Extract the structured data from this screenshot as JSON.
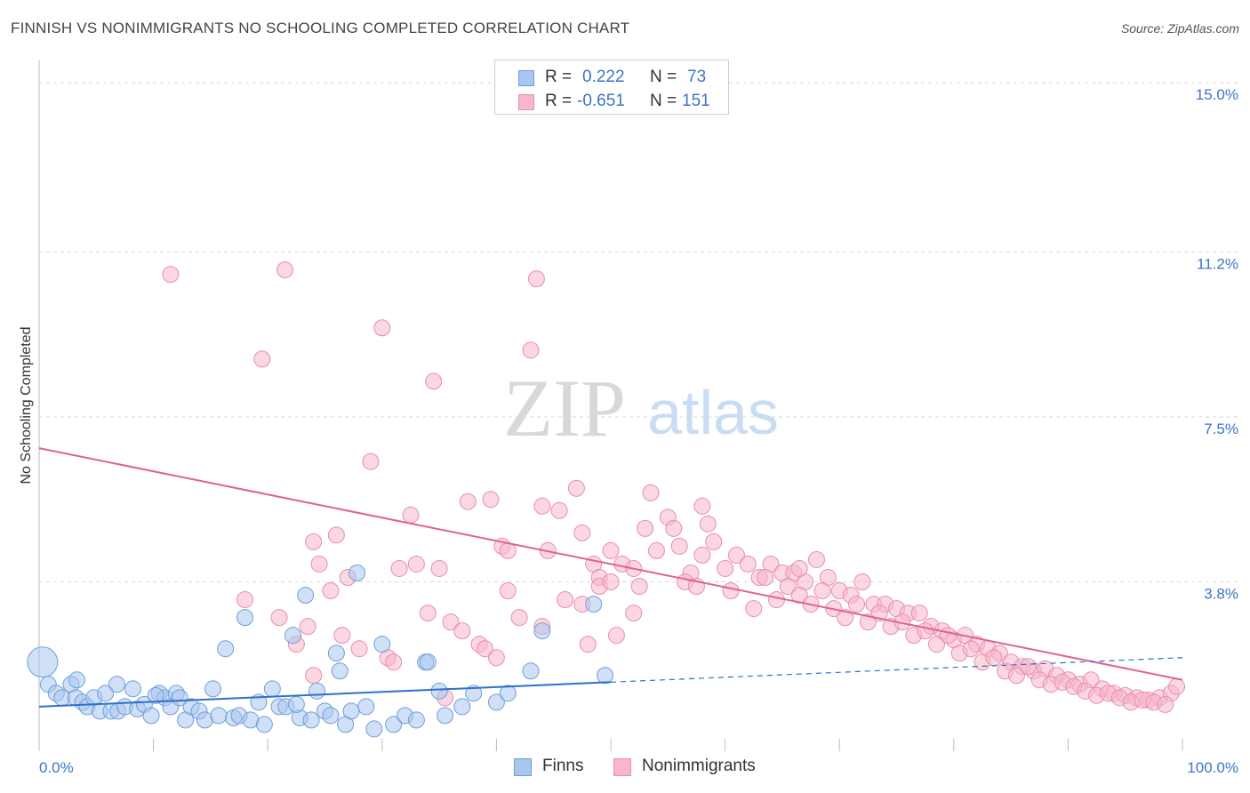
{
  "title": "FINNISH VS NONIMMIGRANTS NO SCHOOLING COMPLETED CORRELATION CHART",
  "source": "Source: ZipAtlas.com",
  "watermark": {
    "zip": "ZIP",
    "atlas": "atlas"
  },
  "legend": {
    "finns": {
      "r_label": "R =",
      "r_value": "0.222",
      "n_label": "N =",
      "n_value": "73"
    },
    "nonimmigrants": {
      "r_label": "R =",
      "r_value": "-0.651",
      "n_label": "N =",
      "n_value": "151"
    }
  },
  "colors": {
    "finns_fill": "#a9c6ee",
    "finns_stroke": "#6f9fdb",
    "finns_line": "#2f6fcf",
    "non_fill": "#f7b6cb",
    "non_stroke": "#e98eaa",
    "non_line": "#e0628e",
    "grid": "#d7d7d7",
    "tick_label": "#3c74c8"
  },
  "chart_data": {
    "type": "scatter",
    "title": "FINNISH VS NONIMMIGRANTS NO SCHOOLING COMPLETED CORRELATION CHART",
    "xlabel": "",
    "ylabel": "No Schooling Completed",
    "xlim": [
      0,
      100
    ],
    "ylim": [
      0,
      15.0
    ],
    "x_tick_labels": [
      "0.0%",
      "100.0%"
    ],
    "y_ticks": [
      3.8,
      7.5,
      11.2,
      15.0
    ],
    "y_tick_labels": [
      "3.8%",
      "7.5%",
      "11.2%",
      "15.0%"
    ],
    "grid": true,
    "legend_position": "bottom-center",
    "series": [
      {
        "name": "Finns",
        "r": 0.222,
        "n": 73,
        "trend": {
          "x": [
            0,
            50
          ],
          "y": [
            1.0,
            1.55
          ]
        },
        "trend_extension": {
          "x": [
            50,
            100
          ],
          "y": [
            1.55,
            2.1
          ]
        },
        "points": [
          [
            0.3,
            2.0
          ],
          [
            0.8,
            1.5
          ],
          [
            1.5,
            1.3
          ],
          [
            2.0,
            1.2
          ],
          [
            2.8,
            1.5
          ],
          [
            3.2,
            1.2
          ],
          [
            3.8,
            1.1
          ],
          [
            4.2,
            1.0
          ],
          [
            4.8,
            1.2
          ],
          [
            5.3,
            0.9
          ],
          [
            5.8,
            1.3
          ],
          [
            6.3,
            0.9
          ],
          [
            6.9,
            0.9
          ],
          [
            7.5,
            1.0
          ],
          [
            8.2,
            1.4
          ],
          [
            8.6,
            0.95
          ],
          [
            9.2,
            1.05
          ],
          [
            9.8,
            0.8
          ],
          [
            10.5,
            1.3
          ],
          [
            11.0,
            1.2
          ],
          [
            11.5,
            1.0
          ],
          [
            12.0,
            1.3
          ],
          [
            12.8,
            0.7
          ],
          [
            13.3,
            1.0
          ],
          [
            14.0,
            0.9
          ],
          [
            14.5,
            0.7
          ],
          [
            15.2,
            1.4
          ],
          [
            15.7,
            0.8
          ],
          [
            16.3,
            2.3
          ],
          [
            17.0,
            0.75
          ],
          [
            17.5,
            0.8
          ],
          [
            18.0,
            3.0
          ],
          [
            18.5,
            0.7
          ],
          [
            19.2,
            1.1
          ],
          [
            19.7,
            0.6
          ],
          [
            20.4,
            1.4
          ],
          [
            21.0,
            1.0
          ],
          [
            21.6,
            1.0
          ],
          [
            22.2,
            2.6
          ],
          [
            22.8,
            0.75
          ],
          [
            23.3,
            3.5
          ],
          [
            23.8,
            0.7
          ],
          [
            24.3,
            1.35
          ],
          [
            25.0,
            0.9
          ],
          [
            25.5,
            0.8
          ],
          [
            26.0,
            2.2
          ],
          [
            26.3,
            1.8
          ],
          [
            26.8,
            0.6
          ],
          [
            27.3,
            0.9
          ],
          [
            27.8,
            4.0
          ],
          [
            28.6,
            1.0
          ],
          [
            29.3,
            0.5
          ],
          [
            30.0,
            2.4
          ],
          [
            31.0,
            0.6
          ],
          [
            32.0,
            0.8
          ],
          [
            33.0,
            0.7
          ],
          [
            33.8,
            2.0
          ],
          [
            34.0,
            2.0
          ],
          [
            35.0,
            1.35
          ],
          [
            35.5,
            0.8
          ],
          [
            37.0,
            1.0
          ],
          [
            38.0,
            1.3
          ],
          [
            40.0,
            1.1
          ],
          [
            41.0,
            1.3
          ],
          [
            43.0,
            1.8
          ],
          [
            44.0,
            2.7
          ],
          [
            48.5,
            3.3
          ],
          [
            49.5,
            1.7
          ],
          [
            10.2,
            1.25
          ],
          [
            12.3,
            1.2
          ],
          [
            3.3,
            1.6
          ],
          [
            6.8,
            1.5
          ],
          [
            22.5,
            1.05
          ]
        ]
      },
      {
        "name": "Nonimmigrants",
        "r": -0.651,
        "n": 151,
        "trend": {
          "x": [
            0,
            100
          ],
          "y": [
            6.8,
            1.6
          ]
        },
        "points": [
          [
            11.5,
            10.7
          ],
          [
            21.5,
            10.8
          ],
          [
            19.5,
            8.8
          ],
          [
            30.0,
            9.5
          ],
          [
            34.5,
            8.3
          ],
          [
            43.5,
            10.6
          ],
          [
            43.0,
            9.0
          ],
          [
            29.0,
            6.5
          ],
          [
            32.5,
            5.3
          ],
          [
            37.5,
            5.6
          ],
          [
            39.5,
            5.65
          ],
          [
            44.0,
            5.5
          ],
          [
            45.5,
            5.4
          ],
          [
            47.0,
            5.9
          ],
          [
            53.5,
            5.8
          ],
          [
            58.0,
            5.5
          ],
          [
            24.0,
            4.7
          ],
          [
            26.0,
            4.85
          ],
          [
            25.5,
            3.6
          ],
          [
            27.0,
            3.9
          ],
          [
            24.5,
            4.2
          ],
          [
            31.5,
            4.1
          ],
          [
            33.0,
            4.2
          ],
          [
            35.0,
            4.1
          ],
          [
            40.5,
            4.6
          ],
          [
            41.0,
            4.5
          ],
          [
            44.5,
            4.5
          ],
          [
            47.5,
            4.9
          ],
          [
            48.5,
            4.2
          ],
          [
            49.0,
            3.9
          ],
          [
            50.0,
            4.5
          ],
          [
            51.0,
            4.2
          ],
          [
            52.0,
            4.1
          ],
          [
            53.0,
            5.0
          ],
          [
            55.0,
            5.25
          ],
          [
            55.5,
            5.0
          ],
          [
            56.0,
            4.6
          ],
          [
            57.0,
            4.0
          ],
          [
            58.5,
            5.1
          ],
          [
            59.0,
            4.7
          ],
          [
            60.0,
            4.1
          ],
          [
            61.0,
            4.4
          ],
          [
            62.0,
            4.2
          ],
          [
            63.0,
            3.9
          ],
          [
            64.0,
            4.2
          ],
          [
            65.0,
            4.0
          ],
          [
            66.0,
            4.0
          ],
          [
            67.0,
            3.8
          ],
          [
            68.0,
            4.3
          ],
          [
            69.0,
            3.9
          ],
          [
            70.0,
            3.6
          ],
          [
            71.0,
            3.5
          ],
          [
            72.0,
            3.8
          ],
          [
            73.0,
            3.3
          ],
          [
            74.0,
            3.3
          ],
          [
            75.0,
            3.2
          ],
          [
            76.0,
            3.1
          ],
          [
            77.0,
            3.1
          ],
          [
            78.0,
            2.8
          ],
          [
            79.0,
            2.7
          ],
          [
            80.0,
            2.5
          ],
          [
            81.0,
            2.6
          ],
          [
            82.0,
            2.4
          ],
          [
            83.0,
            2.3
          ],
          [
            84.0,
            2.2
          ],
          [
            85.0,
            2.0
          ],
          [
            86.0,
            1.9
          ],
          [
            87.0,
            1.8
          ],
          [
            88.0,
            1.85
          ],
          [
            89.0,
            1.7
          ],
          [
            90.0,
            1.6
          ],
          [
            91.0,
            1.5
          ],
          [
            92.0,
            1.6
          ],
          [
            93.0,
            1.4
          ],
          [
            94.0,
            1.3
          ],
          [
            95.0,
            1.25
          ],
          [
            96.0,
            1.2
          ],
          [
            97.0,
            1.15
          ],
          [
            98.0,
            1.2
          ],
          [
            99.0,
            1.3
          ],
          [
            18.0,
            3.4
          ],
          [
            21.0,
            3.0
          ],
          [
            22.5,
            2.4
          ],
          [
            23.5,
            2.8
          ],
          [
            26.5,
            2.6
          ],
          [
            28.0,
            2.3
          ],
          [
            30.5,
            2.1
          ],
          [
            31.0,
            2.0
          ],
          [
            34.0,
            3.1
          ],
          [
            36.0,
            2.9
          ],
          [
            37.0,
            2.7
          ],
          [
            38.5,
            2.4
          ],
          [
            39.0,
            2.3
          ],
          [
            41.0,
            3.6
          ],
          [
            42.0,
            3.0
          ],
          [
            46.0,
            3.4
          ],
          [
            47.5,
            3.3
          ],
          [
            49.0,
            3.7
          ],
          [
            50.5,
            2.6
          ],
          [
            52.5,
            3.7
          ],
          [
            54.0,
            4.5
          ],
          [
            56.5,
            3.8
          ],
          [
            57.5,
            3.7
          ],
          [
            60.5,
            3.6
          ],
          [
            62.5,
            3.2
          ],
          [
            64.5,
            3.4
          ],
          [
            65.5,
            3.7
          ],
          [
            66.5,
            3.5
          ],
          [
            67.5,
            3.3
          ],
          [
            68.5,
            3.6
          ],
          [
            69.5,
            3.2
          ],
          [
            70.5,
            3.0
          ],
          [
            71.5,
            3.3
          ],
          [
            72.5,
            2.9
          ],
          [
            73.5,
            3.1
          ],
          [
            74.5,
            2.8
          ],
          [
            75.5,
            2.9
          ],
          [
            76.5,
            2.6
          ],
          [
            77.5,
            2.7
          ],
          [
            78.5,
            2.4
          ],
          [
            79.5,
            2.6
          ],
          [
            80.5,
            2.2
          ],
          [
            81.5,
            2.3
          ],
          [
            82.5,
            2.0
          ],
          [
            83.5,
            2.1
          ],
          [
            84.5,
            1.8
          ],
          [
            85.5,
            1.7
          ],
          [
            86.5,
            1.9
          ],
          [
            87.5,
            1.6
          ],
          [
            88.5,
            1.5
          ],
          [
            89.5,
            1.55
          ],
          [
            90.5,
            1.45
          ],
          [
            91.5,
            1.35
          ],
          [
            92.5,
            1.25
          ],
          [
            93.5,
            1.3
          ],
          [
            94.5,
            1.2
          ],
          [
            95.5,
            1.1
          ],
          [
            96.5,
            1.15
          ],
          [
            97.5,
            1.1
          ],
          [
            98.5,
            1.05
          ],
          [
            99.5,
            1.45
          ],
          [
            35.5,
            1.2
          ],
          [
            40.0,
            2.1
          ],
          [
            44.0,
            2.8
          ],
          [
            48.0,
            2.4
          ],
          [
            50.0,
            3.8
          ],
          [
            52.0,
            3.1
          ],
          [
            58.0,
            4.4
          ],
          [
            63.5,
            3.9
          ],
          [
            66.5,
            4.1
          ],
          [
            24.0,
            1.7
          ]
        ]
      }
    ]
  },
  "x_axis_labels": {
    "left": "0.0%",
    "right": "100.0%"
  },
  "bottom_legend": {
    "finns": "Finns",
    "nonimmigrants": "Nonimmigrants"
  }
}
